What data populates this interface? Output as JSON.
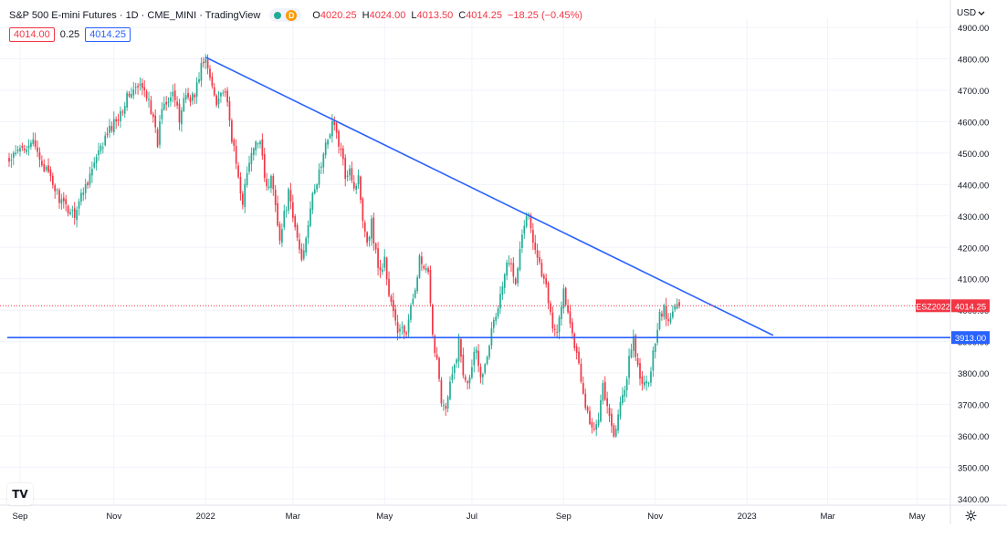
{
  "header": {
    "title": "S&P 500 E-mini Futures · 1D · CME_MINI · TradingView",
    "status_d": "D",
    "ohlc": [
      {
        "key": "O",
        "value": "4020.25"
      },
      {
        "key": "H",
        "value": "4024.00"
      },
      {
        "key": "L",
        "value": "4013.50"
      },
      {
        "key": "C",
        "value": "4014.25"
      }
    ],
    "change": "−18.25 (−0.45%)",
    "bid": "4014.00",
    "spread": "0.25",
    "ask": "4014.25"
  },
  "axis": {
    "currency": "USD",
    "currency_icon": "chevron-down-icon",
    "settings_icon": "gear-icon",
    "logo_text": "TV"
  },
  "colors": {
    "up": "#22ab94",
    "down": "#f23645",
    "trendline": "#2962ff",
    "grid": "#f0f3fa",
    "label_bg": "#f23645"
  },
  "chart_data": {
    "type": "candlestick",
    "title": "S&P 500 E-mini Futures · 1D · CME_MINI · TradingView",
    "ylim": [
      3370,
      4960
    ],
    "y_ticks": [
      "4900.00",
      "4800.00",
      "4700.00",
      "4600.00",
      "4500.00",
      "4400.00",
      "4300.00",
      "4200.00",
      "4100.00",
      "4000.00",
      "3900.00",
      "3800.00",
      "3700.00",
      "3600.00",
      "3500.00",
      "3400.00"
    ],
    "y_tick_values": [
      4900,
      4800,
      4700,
      4600,
      4500,
      4400,
      4300,
      4200,
      4100,
      4000,
      3900,
      3800,
      3700,
      3600,
      3500,
      3400
    ],
    "x_domain": [
      0,
      377
    ],
    "x_ticks": [
      {
        "label": "Sep",
        "t": 5
      },
      {
        "label": "Nov",
        "t": 48
      },
      {
        "label": "2022",
        "t": 90
      },
      {
        "label": "Mar",
        "t": 130
      },
      {
        "label": "May",
        "t": 172
      },
      {
        "label": "Jul",
        "t": 212
      },
      {
        "label": "Sep",
        "t": 254
      },
      {
        "label": "Nov",
        "t": 296
      },
      {
        "label": "2023",
        "t": 338
      },
      {
        "label": "Mar",
        "t": 375
      },
      {
        "label": "May",
        "t": 416
      }
    ],
    "anchors": [
      [
        0,
        4470
      ],
      [
        5,
        4510
      ],
      [
        10,
        4540
      ],
      [
        15,
        4470
      ],
      [
        20,
        4400
      ],
      [
        25,
        4330
      ],
      [
        30,
        4310
      ],
      [
        35,
        4400
      ],
      [
        40,
        4480
      ],
      [
        45,
        4560
      ],
      [
        50,
        4620
      ],
      [
        55,
        4690
      ],
      [
        60,
        4710
      ],
      [
        64,
        4680
      ],
      [
        66,
        4600
      ],
      [
        68,
        4530
      ],
      [
        70,
        4650
      ],
      [
        75,
        4700
      ],
      [
        78,
        4600
      ],
      [
        80,
        4680
      ],
      [
        85,
        4680
      ],
      [
        88,
        4780
      ],
      [
        90,
        4790
      ],
      [
        92,
        4740
      ],
      [
        95,
        4670
      ],
      [
        98,
        4700
      ],
      [
        100,
        4650
      ],
      [
        102,
        4550
      ],
      [
        105,
        4420
      ],
      [
        107,
        4350
      ],
      [
        110,
        4470
      ],
      [
        112,
        4510
      ],
      [
        115,
        4550
      ],
      [
        118,
        4380
      ],
      [
        120,
        4420
      ],
      [
        122,
        4350
      ],
      [
        124,
        4220
      ],
      [
        126,
        4300
      ],
      [
        128,
        4370
      ],
      [
        130,
        4290
      ],
      [
        132,
        4230
      ],
      [
        134,
        4160
      ],
      [
        136,
        4240
      ],
      [
        138,
        4330
      ],
      [
        140,
        4380
      ],
      [
        142,
        4440
      ],
      [
        144,
        4490
      ],
      [
        146,
        4550
      ],
      [
        148,
        4600
      ],
      [
        150,
        4560
      ],
      [
        152,
        4500
      ],
      [
        154,
        4430
      ],
      [
        156,
        4460
      ],
      [
        158,
        4390
      ],
      [
        160,
        4420
      ],
      [
        162,
        4300
      ],
      [
        164,
        4220
      ],
      [
        166,
        4280
      ],
      [
        168,
        4180
      ],
      [
        170,
        4120
      ],
      [
        172,
        4160
      ],
      [
        174,
        4050
      ],
      [
        176,
        4000
      ],
      [
        178,
        3920
      ],
      [
        180,
        3950
      ],
      [
        182,
        3920
      ],
      [
        184,
        4000
      ],
      [
        186,
        4080
      ],
      [
        188,
        4160
      ],
      [
        190,
        4130
      ],
      [
        192,
        4110
      ],
      [
        194,
        3910
      ],
      [
        196,
        3850
      ],
      [
        198,
        3720
      ],
      [
        200,
        3680
      ],
      [
        202,
        3760
      ],
      [
        204,
        3820
      ],
      [
        206,
        3900
      ],
      [
        208,
        3800
      ],
      [
        210,
        3780
      ],
      [
        212,
        3830
      ],
      [
        214,
        3890
      ],
      [
        216,
        3780
      ],
      [
        218,
        3840
      ],
      [
        220,
        3900
      ],
      [
        222,
        3960
      ],
      [
        224,
        4010
      ],
      [
        226,
        4080
      ],
      [
        228,
        4140
      ],
      [
        230,
        4150
      ],
      [
        232,
        4100
      ],
      [
        234,
        4200
      ],
      [
        236,
        4280
      ],
      [
        238,
        4300
      ],
      [
        240,
        4230
      ],
      [
        242,
        4170
      ],
      [
        244,
        4120
      ],
      [
        246,
        4070
      ],
      [
        248,
        3980
      ],
      [
        250,
        3930
      ],
      [
        252,
        3960
      ],
      [
        254,
        4060
      ],
      [
        256,
        3990
      ],
      [
        258,
        3910
      ],
      [
        260,
        3880
      ],
      [
        262,
        3780
      ],
      [
        264,
        3700
      ],
      [
        266,
        3650
      ],
      [
        268,
        3620
      ],
      [
        270,
        3660
      ],
      [
        272,
        3770
      ],
      [
        274,
        3690
      ],
      [
        276,
        3620
      ],
      [
        278,
        3610
      ],
      [
        280,
        3700
      ],
      [
        282,
        3750
      ],
      [
        284,
        3840
      ],
      [
        286,
        3900
      ],
      [
        288,
        3820
      ],
      [
        290,
        3750
      ],
      [
        292,
        3770
      ],
      [
        294,
        3800
      ],
      [
        296,
        3910
      ],
      [
        298,
        3990
      ],
      [
        300,
        4000
      ],
      [
        302,
        3960
      ],
      [
        304,
        3990
      ],
      [
        306,
        4030
      ],
      [
        307,
        4014
      ]
    ],
    "trendline": {
      "t1": 90,
      "p1": 4805,
      "t2": 350,
      "p2": 3920
    },
    "horizontal_line": {
      "price": 3913,
      "label": "3913.00"
    },
    "last_price_line": {
      "price": 4014.25,
      "label": "4014.25",
      "symbol": "ESZ2022"
    }
  }
}
